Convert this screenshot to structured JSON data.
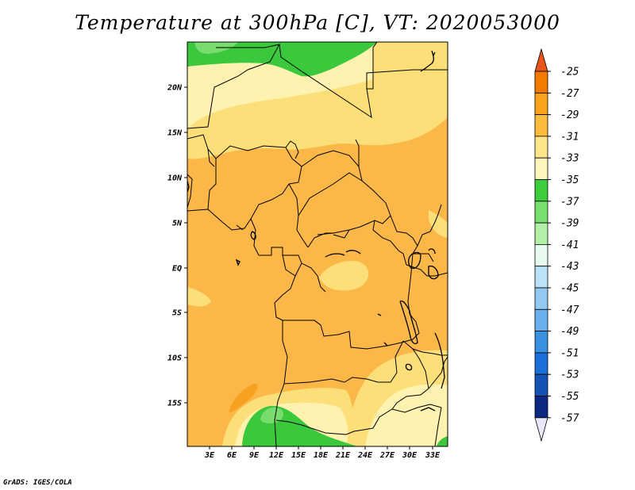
{
  "title": "Temperature at 300hPa [C], VT: 2020053000",
  "footer": "GrADS: IGES/COLA",
  "map": {
    "lon_ticks": [
      "3E",
      "6E",
      "9E",
      "12E",
      "15E",
      "18E",
      "21E",
      "24E",
      "27E",
      "30E",
      "33E"
    ],
    "lat_ticks": [
      "20N",
      "15N",
      "10N",
      "5N",
      "EQ",
      "5S",
      "10S",
      "15S"
    ]
  },
  "colorbar": {
    "labels": [
      "-25",
      "-27",
      "-29",
      "-31",
      "-33",
      "-35",
      "-37",
      "-39",
      "-41",
      "-43",
      "-45",
      "-47",
      "-49",
      "-51",
      "-53",
      "-55",
      "-57"
    ],
    "colors": [
      "#e8551a",
      "#f57a00",
      "#f9a21a",
      "#fbbb3c",
      "#fde68a",
      "#fef5bd",
      "#3ccc3c",
      "#78e06e",
      "#b2f0a8",
      "#e6fbee",
      "#bbe2f6",
      "#93c9f1",
      "#6ab0ee",
      "#3a91e2",
      "#1a70d8",
      "#1452b4",
      "#0c2880",
      "#e8e8f8"
    ]
  },
  "colors": {
    "c31": "#fbb848",
    "c33": "#fddf7a",
    "c35": "#fdf2b0",
    "c37": "#3cc83c",
    "c39": "#78dc6e",
    "c29": "#f8a020"
  }
}
